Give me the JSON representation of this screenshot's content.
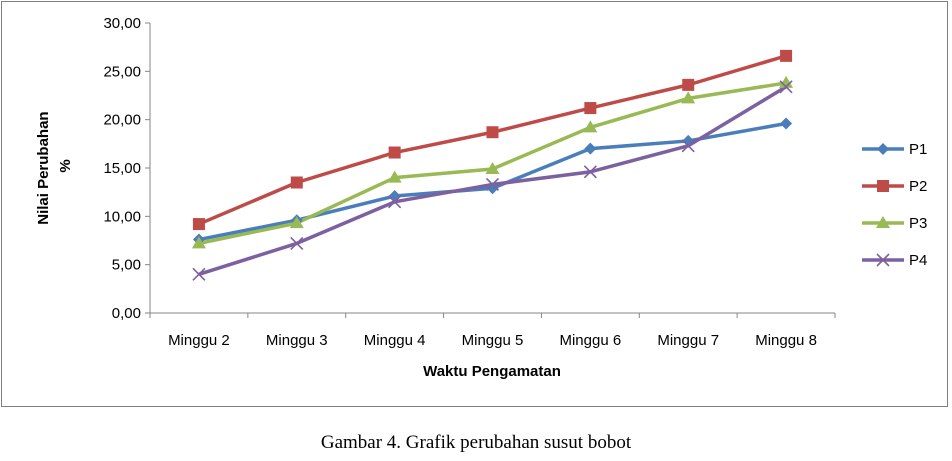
{
  "caption": "Gambar 4. Grafik perubahan susut bobot",
  "chart_data": {
    "type": "line",
    "categories": [
      "Minggu 2",
      "Minggu 3",
      "Minggu 4",
      "Minggu 5",
      "Minggu 6",
      "Minggu 7",
      "Minggu 8"
    ],
    "series": [
      {
        "name": "P1",
        "color": "#4a7ebb",
        "marker": "diamond",
        "values": [
          7.6,
          9.6,
          12.1,
          12.9,
          17.0,
          17.8,
          19.6
        ]
      },
      {
        "name": "P2",
        "color": "#be4b48",
        "marker": "square",
        "values": [
          9.2,
          13.5,
          16.6,
          18.7,
          21.2,
          23.6,
          26.6
        ]
      },
      {
        "name": "P3",
        "color": "#98b954",
        "marker": "triangle",
        "values": [
          7.2,
          9.3,
          14.0,
          14.9,
          19.2,
          22.2,
          23.8
        ]
      },
      {
        "name": "P4",
        "color": "#7d60a0",
        "marker": "x",
        "values": [
          4.0,
          7.2,
          11.5,
          13.3,
          14.6,
          17.3,
          23.4
        ]
      }
    ],
    "xlabel": "Waktu Pengamatan",
    "ylabel_lines": [
      "Nilai Perubahan",
      "%"
    ],
    "ylim": [
      0,
      30
    ],
    "yticks": [
      "0,00",
      "5,00",
      "10,00",
      "15,00",
      "20,00",
      "25,00",
      "30,00"
    ],
    "legend_position": "right",
    "grid": false
  }
}
